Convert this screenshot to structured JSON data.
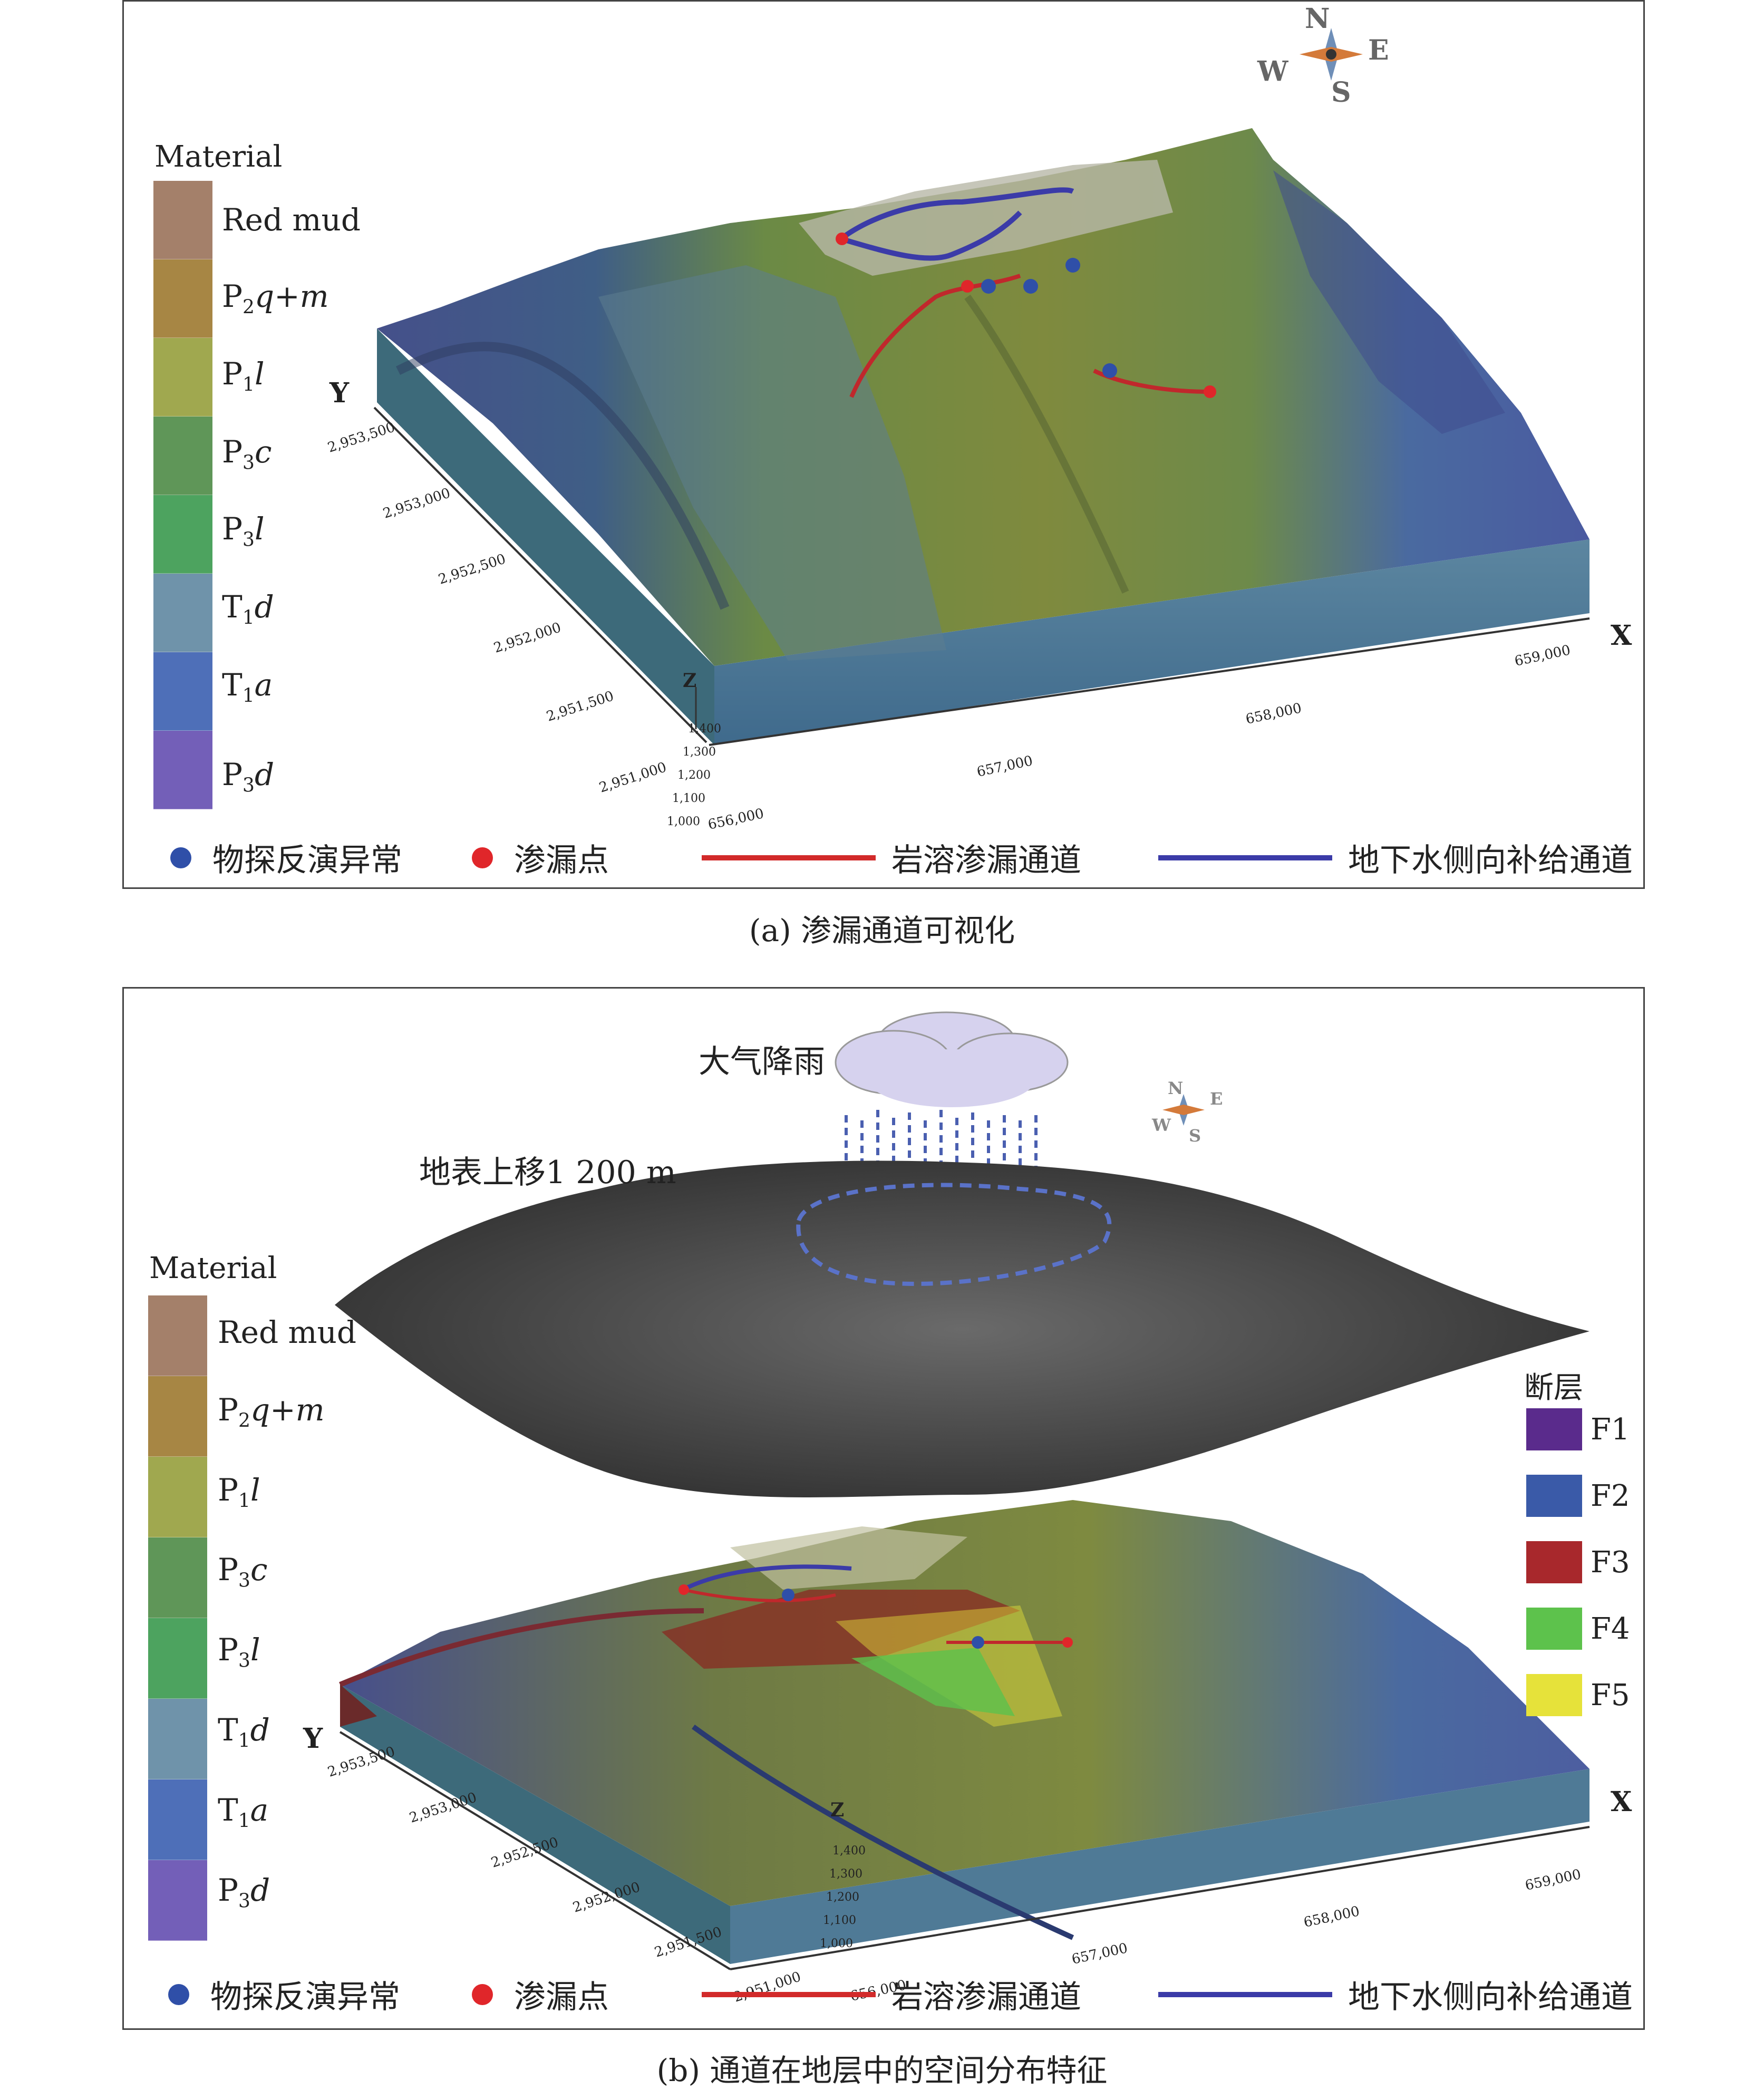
{
  "materials": {
    "title": "Material",
    "items": [
      {
        "main": "Red mud",
        "sub": "",
        "tail": "",
        "color": "#a4806a"
      },
      {
        "main": "P",
        "sub": "2",
        "tail": "q+m",
        "color": "#a78644"
      },
      {
        "main": "P",
        "sub": "1",
        "tail": "l",
        "color": "#a0a84f"
      },
      {
        "main": "P",
        "sub": "3",
        "tail": "c",
        "color": "#5f9658"
      },
      {
        "main": "P",
        "sub": "3",
        "tail": "l",
        "color": "#4da35f"
      },
      {
        "main": "T",
        "sub": "1",
        "tail": "d",
        "color": "#6f93aa"
      },
      {
        "main": "T",
        "sub": "1",
        "tail": "a",
        "color": "#4e6fb8"
      },
      {
        "main": "P",
        "sub": "3",
        "tail": "d",
        "color": "#735fb8"
      }
    ]
  },
  "legend": {
    "geophysical_anomaly": "物探反演异常",
    "leakage_point": "渗漏点",
    "karst_channel": "岩溶渗漏通道",
    "groundwater_channel": "地下水侧向补给通道"
  },
  "axes": {
    "y_name": "Y",
    "x_name": "X",
    "z_name": "Z",
    "y_ticks": [
      "2,953,500",
      "2,953,000",
      "2,952,500",
      "2,952,000",
      "2,951,500",
      "2,951,000"
    ],
    "x_ticks": [
      "656,000",
      "657,000",
      "658,000",
      "659,000"
    ],
    "z_ticks": [
      "1,000",
      "1,100",
      "1,200",
      "1,300",
      "1,400"
    ]
  },
  "compass": {
    "n": "N",
    "s": "S",
    "e": "E",
    "w": "W"
  },
  "panel_a": {
    "caption": "(a) 渗漏通道可视化"
  },
  "panel_b": {
    "caption": "(b) 通道在地层中的空间分布特征",
    "rain_label": "大气降雨",
    "surface_label": "地表上移1 200 m",
    "faults_title": "断层",
    "faults": [
      {
        "name": "F1",
        "color": "#5a2b8c"
      },
      {
        "name": "F2",
        "color": "#3a5aa8"
      },
      {
        "name": "F3",
        "color": "#a8282c"
      },
      {
        "name": "F4",
        "color": "#5dc24c"
      },
      {
        "name": "F5",
        "color": "#e6e23a"
      }
    ]
  }
}
